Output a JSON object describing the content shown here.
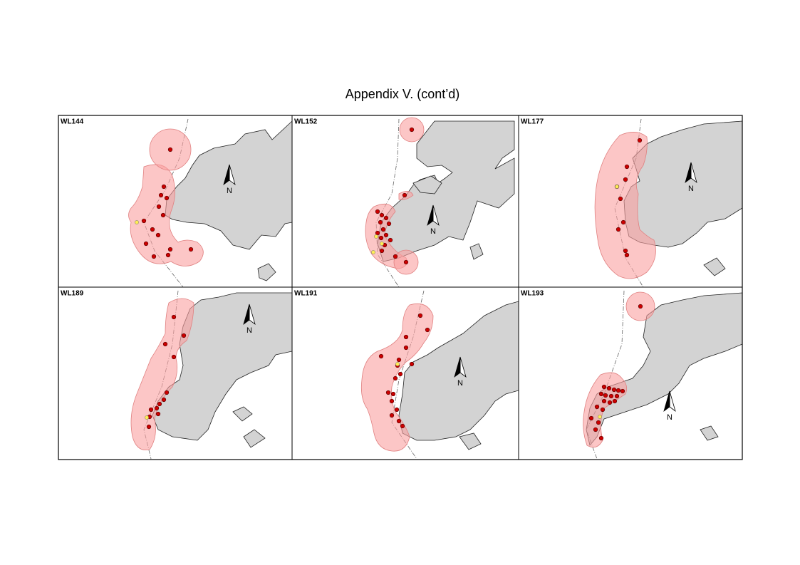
{
  "title": "Appendix V.  (cont’d)",
  "north_label": "N",
  "panels": [
    {
      "label": "WL144"
    },
    {
      "label": "WL152"
    },
    {
      "label": "WL177"
    },
    {
      "label": "WL189"
    },
    {
      "label": "WL191"
    },
    {
      "label": "WL193"
    }
  ]
}
